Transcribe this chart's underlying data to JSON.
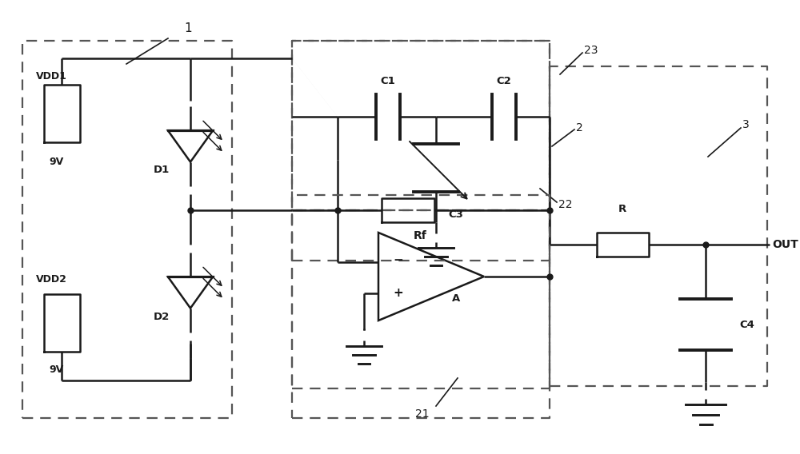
{
  "bg_color": "#ffffff",
  "line_color": "#1a1a1a",
  "dashed_color": "#555555",
  "figsize": [
    10.0,
    5.68
  ],
  "dpi": 100,
  "xlim": [
    0,
    10
  ],
  "ylim": [
    0,
    5.68
  ]
}
